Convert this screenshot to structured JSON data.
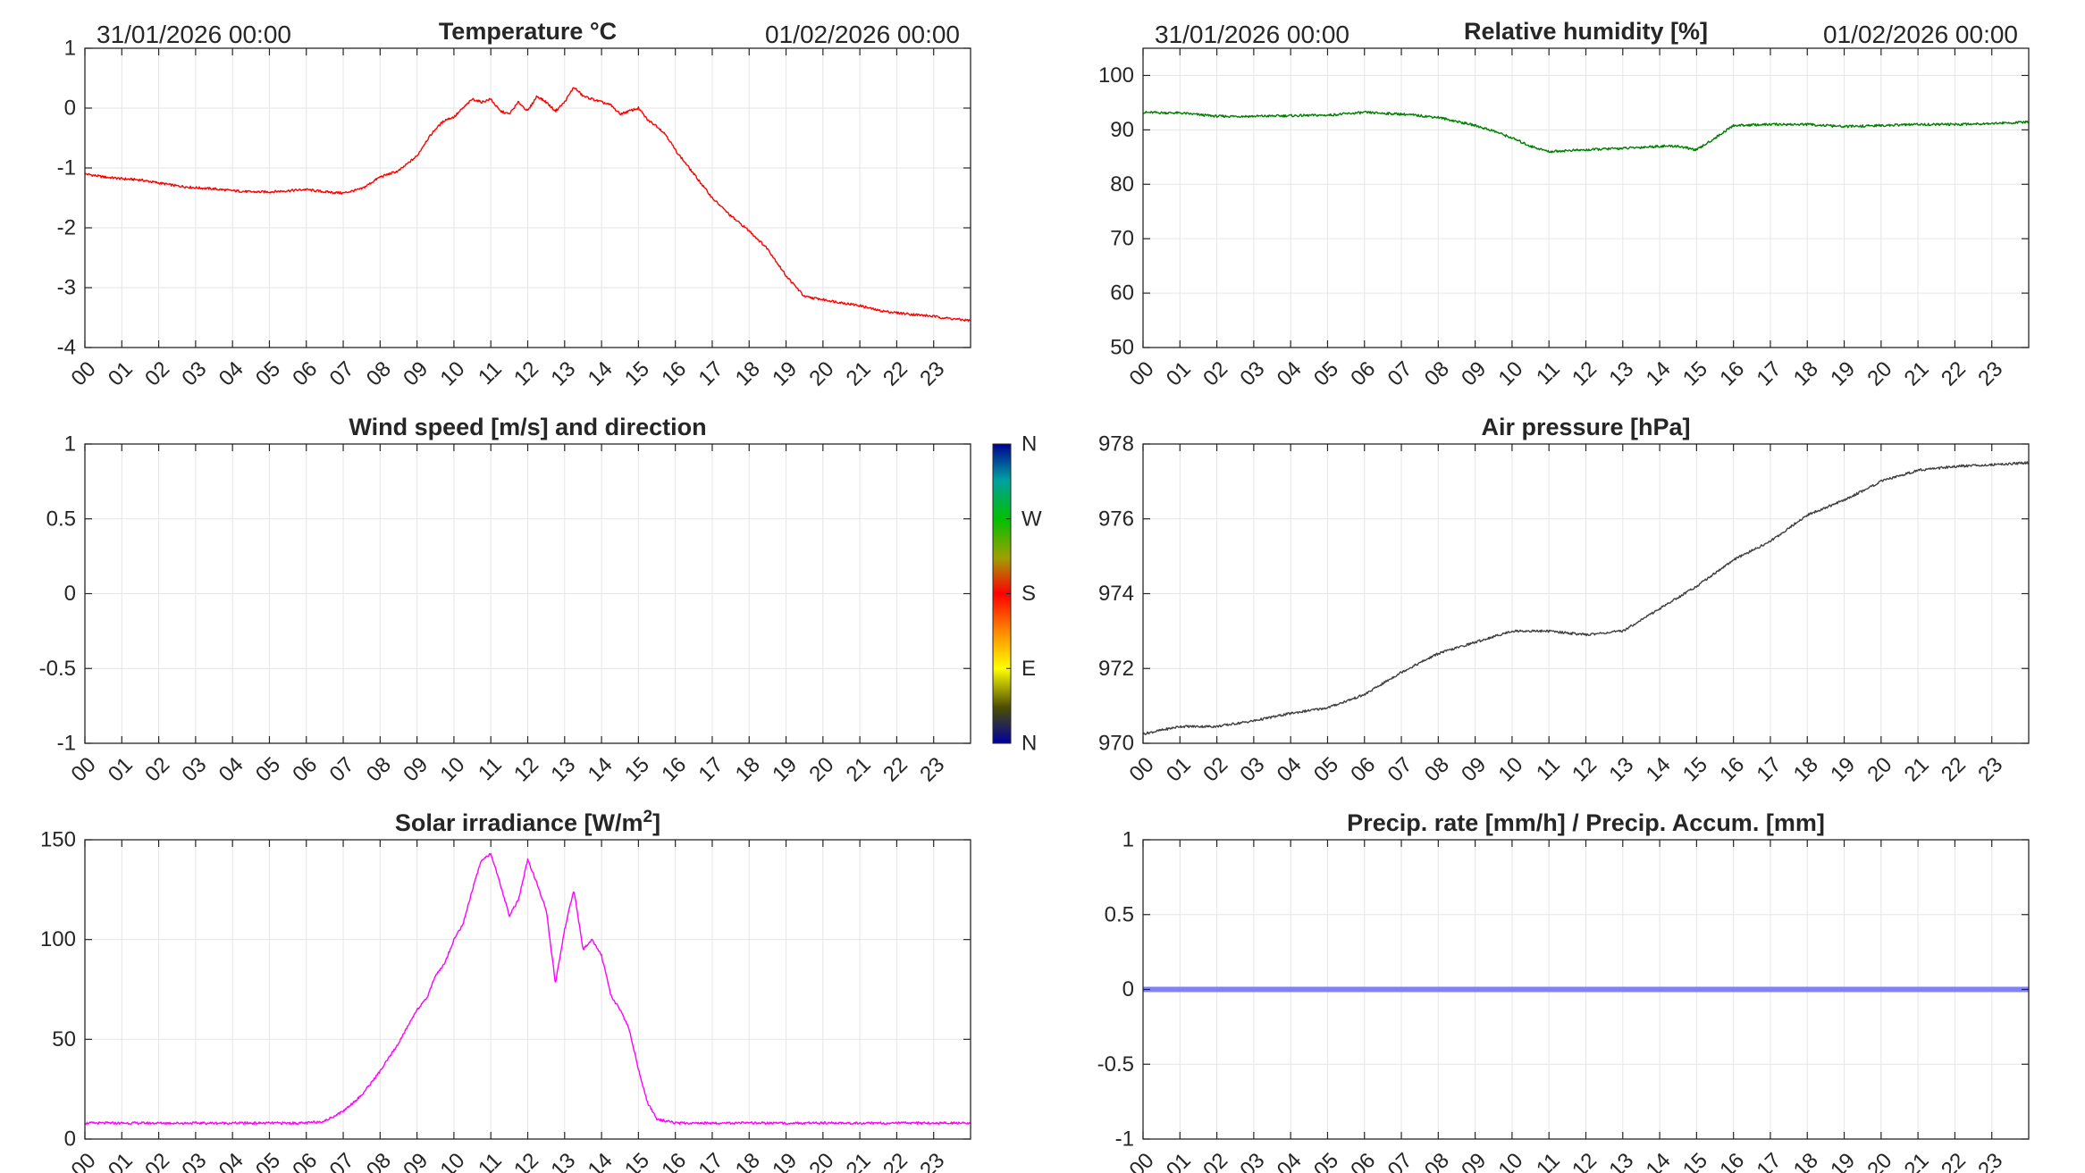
{
  "figure": {
    "date_start": "31/01/2026 00:00",
    "date_end": "01/02/2026 00:00"
  },
  "hour_labels": [
    "00",
    "01",
    "02",
    "03",
    "04",
    "05",
    "06",
    "07",
    "08",
    "09",
    "10",
    "11",
    "12",
    "13",
    "14",
    "15",
    "16",
    "17",
    "18",
    "19",
    "20",
    "21",
    "22",
    "23"
  ],
  "chart_data": [
    {
      "id": "temperature",
      "type": "line",
      "title": "Temperature °C",
      "xlabel": "",
      "ylabel": "",
      "xlim": [
        0,
        24
      ],
      "ylim": [
        -4,
        1
      ],
      "yticks": [
        "1",
        "0",
        "-1",
        "-2",
        "-3",
        "-4"
      ],
      "grid": true,
      "color": "#ff0000",
      "series": [
        {
          "x": [
            0,
            0.5,
            1,
            1.5,
            2,
            2.5,
            3,
            3.5,
            4,
            4.5,
            5,
            5.5,
            6,
            6.5,
            7,
            7.5,
            8,
            8.5,
            9,
            9.25,
            9.5,
            9.75,
            10,
            10.25,
            10.5,
            10.75,
            11,
            11.25,
            11.5,
            11.75,
            12,
            12.25,
            12.5,
            12.75,
            13,
            13.25,
            13.5,
            13.75,
            14,
            14.25,
            14.5,
            14.75,
            15,
            15.25,
            15.5,
            15.75,
            16,
            16.5,
            17,
            17.5,
            18,
            18.5,
            19,
            19.5,
            20,
            20.5,
            21,
            21.5,
            22,
            22.5,
            23,
            23.5,
            24
          ],
          "y": [
            -1.1,
            -1.15,
            -1.18,
            -1.2,
            -1.25,
            -1.3,
            -1.33,
            -1.35,
            -1.38,
            -1.4,
            -1.4,
            -1.38,
            -1.36,
            -1.4,
            -1.42,
            -1.35,
            -1.15,
            -1.05,
            -0.8,
            -0.55,
            -0.35,
            -0.2,
            -0.15,
            0.0,
            0.15,
            0.1,
            0.15,
            -0.05,
            -0.1,
            0.1,
            -0.05,
            0.2,
            0.1,
            -0.05,
            0.1,
            0.35,
            0.2,
            0.15,
            0.1,
            0.05,
            -0.1,
            -0.05,
            0.0,
            -0.2,
            -0.3,
            -0.45,
            -0.7,
            -1.1,
            -1.5,
            -1.8,
            -2.05,
            -2.35,
            -2.8,
            -3.15,
            -3.2,
            -3.25,
            -3.3,
            -3.38,
            -3.42,
            -3.45,
            -3.48,
            -3.52,
            -3.55
          ]
        }
      ]
    },
    {
      "id": "humidity",
      "type": "line",
      "title": "Relative humidity [%]",
      "xlabel": "",
      "ylabel": "",
      "xlim": [
        0,
        24
      ],
      "ylim": [
        50,
        105
      ],
      "yticks": [
        "100",
        "90",
        "80",
        "70",
        "60",
        "50"
      ],
      "grid": true,
      "color": "#007f00",
      "series": [
        {
          "x": [
            0,
            1,
            2,
            3,
            4,
            5,
            6,
            7,
            8,
            9,
            9.5,
            10,
            10.5,
            11,
            11.5,
            12,
            12.5,
            13,
            13.5,
            14,
            14.5,
            15,
            15.5,
            16,
            17,
            18,
            19,
            20,
            21,
            22,
            23,
            24
          ],
          "y": [
            93.2,
            93.1,
            92.5,
            92.5,
            92.6,
            92.7,
            93.2,
            92.9,
            92.3,
            90.8,
            89.8,
            88.5,
            87,
            86,
            86.2,
            86.3,
            86.5,
            86.6,
            86.8,
            87,
            87,
            86.3,
            88.5,
            90.8,
            91,
            91,
            90.6,
            90.8,
            91,
            91,
            91.2,
            91.4
          ]
        }
      ]
    },
    {
      "id": "wind",
      "type": "scatter",
      "title": "Wind speed [m/s] and direction",
      "xlabel": "",
      "ylabel": "",
      "xlim": [
        0,
        24
      ],
      "ylim": [
        -1,
        1
      ],
      "yticks": [
        "1",
        "0.5",
        "0",
        "-0.5",
        "-1"
      ],
      "grid": true,
      "colorbar_labels": [
        "N",
        "W",
        "S",
        "E",
        "N"
      ],
      "series": []
    },
    {
      "id": "pressure",
      "type": "line",
      "title": "Air pressure [hPa]",
      "xlabel": "",
      "ylabel": "",
      "xlim": [
        0,
        24
      ],
      "ylim": [
        970,
        978
      ],
      "yticks": [
        "978",
        "976",
        "974",
        "972",
        "970"
      ],
      "grid": true,
      "color": "#404040",
      "series": [
        {
          "x": [
            0,
            1,
            2,
            3,
            4,
            5,
            6,
            7,
            8,
            9,
            10,
            11,
            12,
            13,
            14,
            15,
            16,
            17,
            18,
            19,
            20,
            21,
            22,
            23,
            24
          ],
          "y": [
            970.25,
            970.45,
            970.45,
            970.6,
            970.8,
            970.95,
            971.3,
            971.9,
            972.4,
            972.7,
            973.0,
            973.0,
            972.9,
            973.0,
            973.6,
            974.2,
            974.9,
            975.4,
            976.1,
            976.5,
            977.0,
            977.3,
            977.4,
            977.45,
            977.5
          ]
        }
      ]
    },
    {
      "id": "solar",
      "type": "line",
      "title": "Solar irradiance [W/m",
      "title_sup": "2",
      "title_end": "]",
      "xlabel": "",
      "ylabel": "",
      "xlim": [
        0,
        24
      ],
      "ylim": [
        0,
        150
      ],
      "yticks": [
        "150",
        "100",
        "50",
        "0"
      ],
      "grid": true,
      "color": "#ff00ff",
      "series": [
        {
          "x": [
            0,
            1,
            2,
            3,
            4,
            5,
            6,
            6.5,
            7,
            7.5,
            8,
            8.5,
            9,
            9.25,
            9.5,
            9.75,
            10,
            10.25,
            10.5,
            10.75,
            11,
            11.25,
            11.5,
            11.75,
            12,
            12.25,
            12.5,
            12.75,
            13,
            13.25,
            13.5,
            13.75,
            14,
            14.25,
            14.5,
            14.75,
            15,
            15.25,
            15.5,
            16,
            17,
            18,
            19,
            20,
            21,
            22,
            23,
            24
          ],
          "y": [
            8,
            8,
            8,
            8,
            8,
            8,
            8,
            9,
            14,
            22,
            34,
            48,
            65,
            70,
            82,
            88,
            100,
            108,
            125,
            140,
            143,
            128,
            112,
            120,
            140,
            128,
            115,
            78,
            105,
            125,
            95,
            100,
            92,
            72,
            65,
            55,
            35,
            18,
            10,
            8,
            8,
            8,
            8,
            8,
            8,
            8,
            8,
            8
          ]
        }
      ]
    },
    {
      "id": "precipitation",
      "type": "line",
      "title": "Precip. rate [mm/h] / Precip. Accum. [mm]",
      "xlabel": "",
      "ylabel": "",
      "xlim": [
        0,
        24
      ],
      "ylim": [
        -1,
        1
      ],
      "yticks": [
        "1",
        "0.5",
        "0",
        "-0.5",
        "-1"
      ],
      "grid": true,
      "color": "#8080ff",
      "series": [
        {
          "x": [
            0,
            24
          ],
          "y": [
            0,
            0
          ]
        }
      ]
    }
  ]
}
